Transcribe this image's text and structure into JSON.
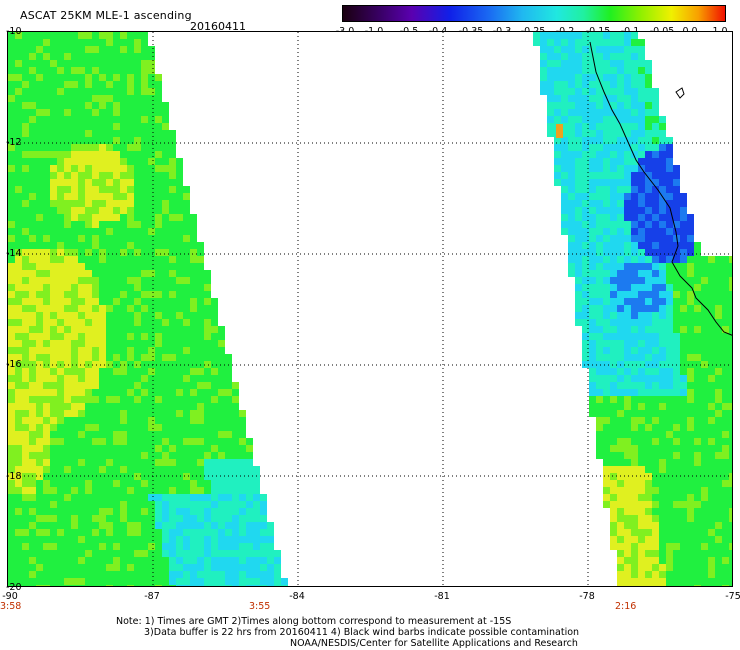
{
  "header": {
    "title": "ASCAT 25KM MLE-1 ascending",
    "date": "20160411"
  },
  "colorbar": {
    "labels": [
      "-3.0",
      "-1.0",
      "-0.5",
      "-0.4",
      "-0.35",
      "-0.3",
      "-0.25",
      "-0.2",
      "-0.15",
      "-0.1",
      "-0.05",
      "0.0",
      "1.0"
    ]
  },
  "axes": {
    "y_ticks": [
      "-10",
      "-12",
      "-14",
      "-16",
      "-18",
      "-20"
    ],
    "x_ticks": [
      "-90",
      "-87",
      "-84",
      "-81",
      "-78",
      "-75"
    ]
  },
  "times": {
    "left": "3:58",
    "middle": "3:55",
    "right": "2:16"
  },
  "footer": {
    "note_line1": "Note: 1) Times are GMT 2)Times along bottom correspond to measurement at -15S",
    "note_line2": "3)Data buffer is 22 hrs from 20160411 4) Black wind barbs indicate possible contamination",
    "credit": "NOAA/NESDIS/Center for Satellite Applications and Research"
  },
  "map": {
    "lon_range": [
      -90,
      -75
    ],
    "lat_range": [
      -20,
      -10
    ],
    "swath_colors": {
      "deep_blue": "#1640e8",
      "blue": "#1c7af0",
      "cyan": "#20d8f0",
      "teal": "#20f0c0",
      "green": "#20f040",
      "lime": "#80f020",
      "yellow": "#e0f020",
      "orange": "#f0a020"
    }
  }
}
